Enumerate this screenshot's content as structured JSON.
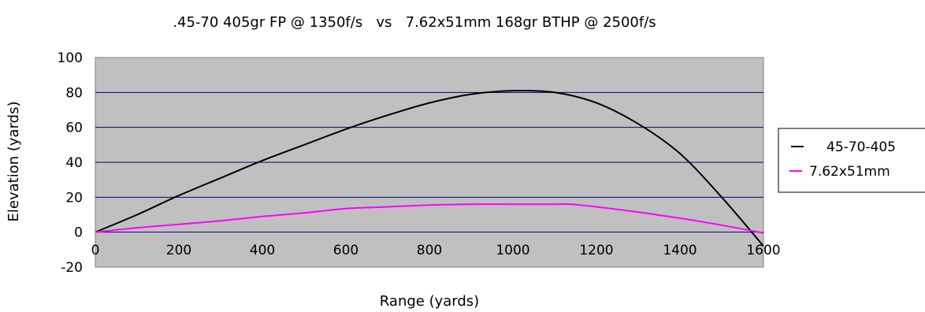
{
  "chart_data": {
    "type": "line",
    "title": ".45-70 405gr FP @ 1350f/s   vs   7.62x51mm 168gr BTHP @ 2500f/s",
    "xlabel": "Range (yards)",
    "ylabel": "Elevation (yards)",
    "xlim": [
      0,
      1600
    ],
    "ylim": [
      -20,
      100
    ],
    "x_ticks": [
      "0",
      "200",
      "400",
      "600",
      "800",
      "1000",
      "1200",
      "1400",
      "1600"
    ],
    "y_ticks": [
      "100",
      "80",
      "60",
      "40",
      "20",
      "0",
      "-20"
    ],
    "grid": "horizontal",
    "plot_background": "#c0c0c0",
    "grid_color": "#000080",
    "legend_position": "right",
    "series": [
      {
        "name": "45-70-405",
        "color": "#000000",
        "x": [
          0,
          100,
          200,
          300,
          400,
          500,
          600,
          700,
          800,
          900,
          1000,
          1100,
          1200,
          1300,
          1400,
          1500,
          1600
        ],
        "y": [
          0,
          10,
          21,
          31,
          41,
          50,
          59,
          67,
          74,
          79,
          81,
          80,
          74,
          62,
          45,
          20,
          -8
        ]
      },
      {
        "name": "7.62x51mm",
        "color": "#ff00ff",
        "x": [
          0,
          100,
          200,
          300,
          400,
          500,
          600,
          700,
          800,
          900,
          1000,
          1100,
          1140,
          1200,
          1300,
          1400,
          1500,
          1600
        ],
        "y": [
          0,
          2.5,
          4.5,
          6.5,
          9,
          11,
          13.5,
          14.5,
          15.5,
          16,
          16,
          16,
          16,
          14.5,
          11.5,
          8,
          4,
          -0.5
        ]
      }
    ]
  }
}
